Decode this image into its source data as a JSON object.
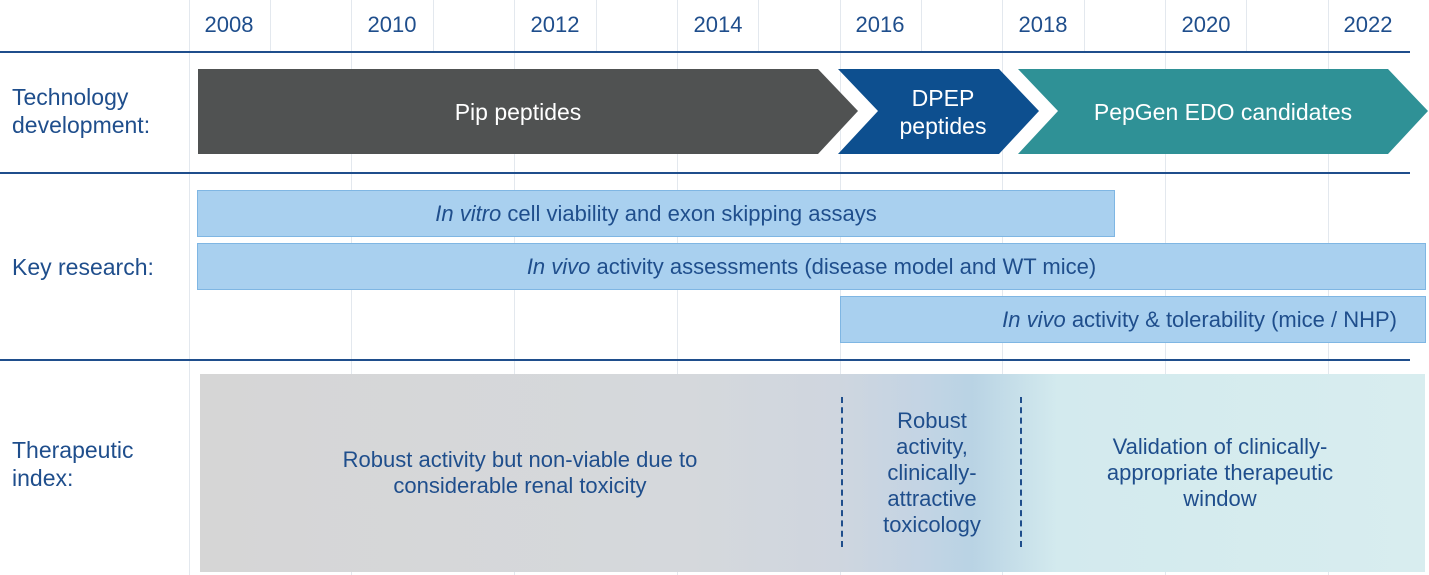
{
  "years": [
    "2008",
    "2010",
    "2012",
    "2014",
    "2016",
    "2018",
    "2020",
    "2022"
  ],
  "rows": {
    "technology": "Technology\ndevelopment:",
    "research": "Key research:",
    "therapeutic": "Therapeutic\nindex:"
  },
  "technology": {
    "pip": "Pip peptides",
    "dpep": "DPEP\npeptides",
    "pepgen": "PepGen EDO candidates"
  },
  "research": [
    {
      "italic": "In vitro",
      "rest": " cell viability and exon skipping assays"
    },
    {
      "italic": "In vivo",
      "rest": " activity assessments (disease model and WT mice)"
    },
    {
      "italic": "In vivo",
      "rest": " activity & tolerability (mice / NHP)"
    }
  ],
  "therapeutic": {
    "pip": "Robust activity but non-viable due to\nconsiderable renal toxicity",
    "dpep": "Robust\nactivity,\nclinically-\nattractive\ntoxicology",
    "pepgen": "Validation of clinically-\nappropriate therapeutic\nwindow"
  },
  "colors": {
    "navy": "#1f4e8c",
    "pip_gray": "#505252",
    "dpep_blue": "#0d4f8f",
    "pepgen_teal": "#2f9196",
    "research_bar": "#a9d0ef"
  }
}
